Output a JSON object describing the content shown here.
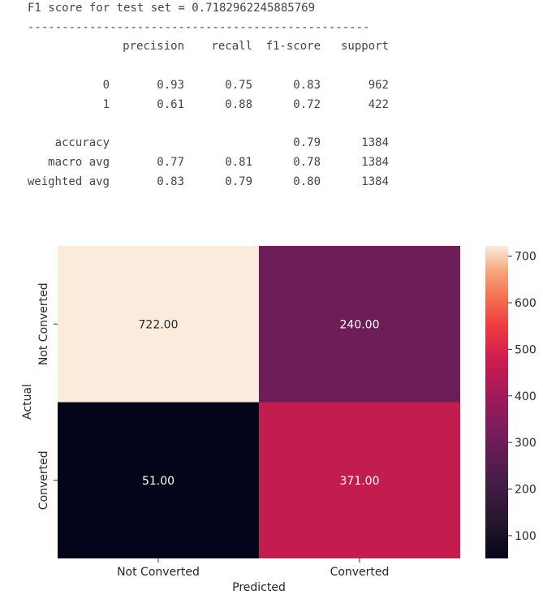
{
  "output": {
    "f1_line": "F1 score for test set = 0.7182962245885769",
    "separator": "--------------------------------------------------------",
    "report_headers": [
      "precision",
      "recall",
      "f1-score",
      "support"
    ],
    "report_rows": [
      {
        "label": "0",
        "precision": "0.93",
        "recall": "0.75",
        "f1": "0.83",
        "support": "962"
      },
      {
        "label": "1",
        "precision": "0.61",
        "recall": "0.88",
        "f1": "0.72",
        "support": "422"
      },
      {
        "label": "accuracy",
        "precision": "",
        "recall": "",
        "f1": "0.79",
        "support": "1384"
      },
      {
        "label": "macro avg",
        "precision": "0.77",
        "recall": "0.81",
        "f1": "0.78",
        "support": "1384"
      },
      {
        "label": "weighted avg",
        "precision": "0.83",
        "recall": "0.79",
        "f1": "0.80",
        "support": "1384"
      }
    ]
  },
  "chart_data": {
    "type": "heatmap",
    "x_categories": [
      "Not Converted",
      "Converted"
    ],
    "y_categories": [
      "Not Converted",
      "Converted"
    ],
    "values": [
      [
        722,
        240
      ],
      [
        51,
        371
      ]
    ],
    "annotations": [
      [
        "722.00",
        "240.00"
      ],
      [
        "51.00",
        "371.00"
      ]
    ],
    "xlabel": "Predicted",
    "ylabel": "Actual",
    "colorbar": {
      "min": 51,
      "max": 722,
      "ticks": [
        "100",
        "200",
        "300",
        "400",
        "500",
        "600",
        "700"
      ],
      "colormap": "rocket"
    }
  }
}
